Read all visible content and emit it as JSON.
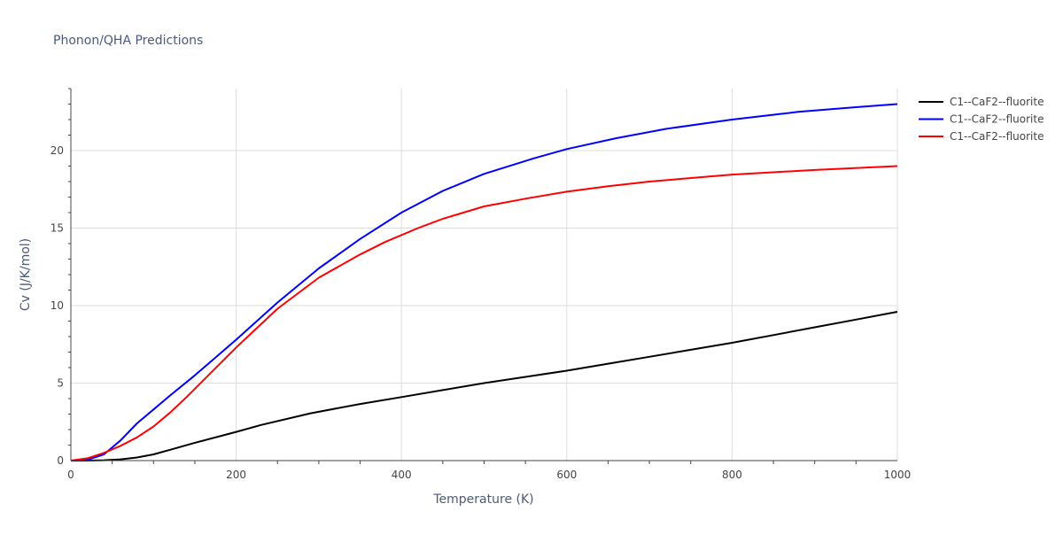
{
  "chart_data": {
    "type": "line",
    "title": "Phonon/QHA Predictions",
    "xlabel": "Temperature (K)",
    "ylabel": "Cv (J/K/mol)",
    "xlim": [
      0,
      1000
    ],
    "ylim": [
      0,
      24
    ],
    "xticks": [
      0,
      200,
      400,
      600,
      800,
      1000
    ],
    "yticks": [
      0,
      5,
      10,
      15,
      20
    ],
    "grid": true,
    "legend_position": "top-right",
    "series": [
      {
        "name": "C1--CaF2--fluorite",
        "color": "#000000",
        "points": [
          [
            0,
            0
          ],
          [
            20,
            0
          ],
          [
            40,
            0.02
          ],
          [
            60,
            0.08
          ],
          [
            80,
            0.2
          ],
          [
            100,
            0.4
          ],
          [
            120,
            0.7
          ],
          [
            150,
            1.15
          ],
          [
            200,
            1.85
          ],
          [
            230,
            2.3
          ],
          [
            290,
            3.05
          ],
          [
            350,
            3.65
          ],
          [
            400,
            4.1
          ],
          [
            450,
            4.55
          ],
          [
            500,
            5.0
          ],
          [
            550,
            5.4
          ],
          [
            600,
            5.8
          ],
          [
            650,
            6.25
          ],
          [
            700,
            6.7
          ],
          [
            750,
            7.15
          ],
          [
            800,
            7.6
          ],
          [
            850,
            8.1
          ],
          [
            900,
            8.6
          ],
          [
            950,
            9.1
          ],
          [
            1000,
            9.6
          ]
        ]
      },
      {
        "name": "C1--CaF2--fluorite",
        "color": "#0000ff",
        "points": [
          [
            0,
            0
          ],
          [
            20,
            0.05
          ],
          [
            40,
            0.4
          ],
          [
            60,
            1.3
          ],
          [
            80,
            2.4
          ],
          [
            100,
            3.3
          ],
          [
            120,
            4.2
          ],
          [
            150,
            5.5
          ],
          [
            200,
            7.8
          ],
          [
            250,
            10.2
          ],
          [
            300,
            12.4
          ],
          [
            350,
            14.3
          ],
          [
            400,
            16.0
          ],
          [
            450,
            17.4
          ],
          [
            500,
            18.5
          ],
          [
            560,
            19.5
          ],
          [
            600,
            20.1
          ],
          [
            660,
            20.8
          ],
          [
            720,
            21.4
          ],
          [
            800,
            22.0
          ],
          [
            880,
            22.5
          ],
          [
            950,
            22.8
          ],
          [
            1000,
            23.0
          ]
        ]
      },
      {
        "name": "C1--CaF2--fluorite",
        "color": "#ff0000",
        "points": [
          [
            0,
            0
          ],
          [
            20,
            0.15
          ],
          [
            40,
            0.5
          ],
          [
            60,
            0.95
          ],
          [
            80,
            1.5
          ],
          [
            100,
            2.2
          ],
          [
            120,
            3.1
          ],
          [
            140,
            4.1
          ],
          [
            170,
            5.7
          ],
          [
            200,
            7.3
          ],
          [
            250,
            9.8
          ],
          [
            300,
            11.8
          ],
          [
            350,
            13.3
          ],
          [
            380,
            14.1
          ],
          [
            420,
            15.0
          ],
          [
            450,
            15.6
          ],
          [
            500,
            16.4
          ],
          [
            550,
            16.9
          ],
          [
            600,
            17.35
          ],
          [
            650,
            17.7
          ],
          [
            700,
            18.0
          ],
          [
            800,
            18.45
          ],
          [
            900,
            18.75
          ],
          [
            1000,
            19.0
          ]
        ]
      }
    ]
  }
}
